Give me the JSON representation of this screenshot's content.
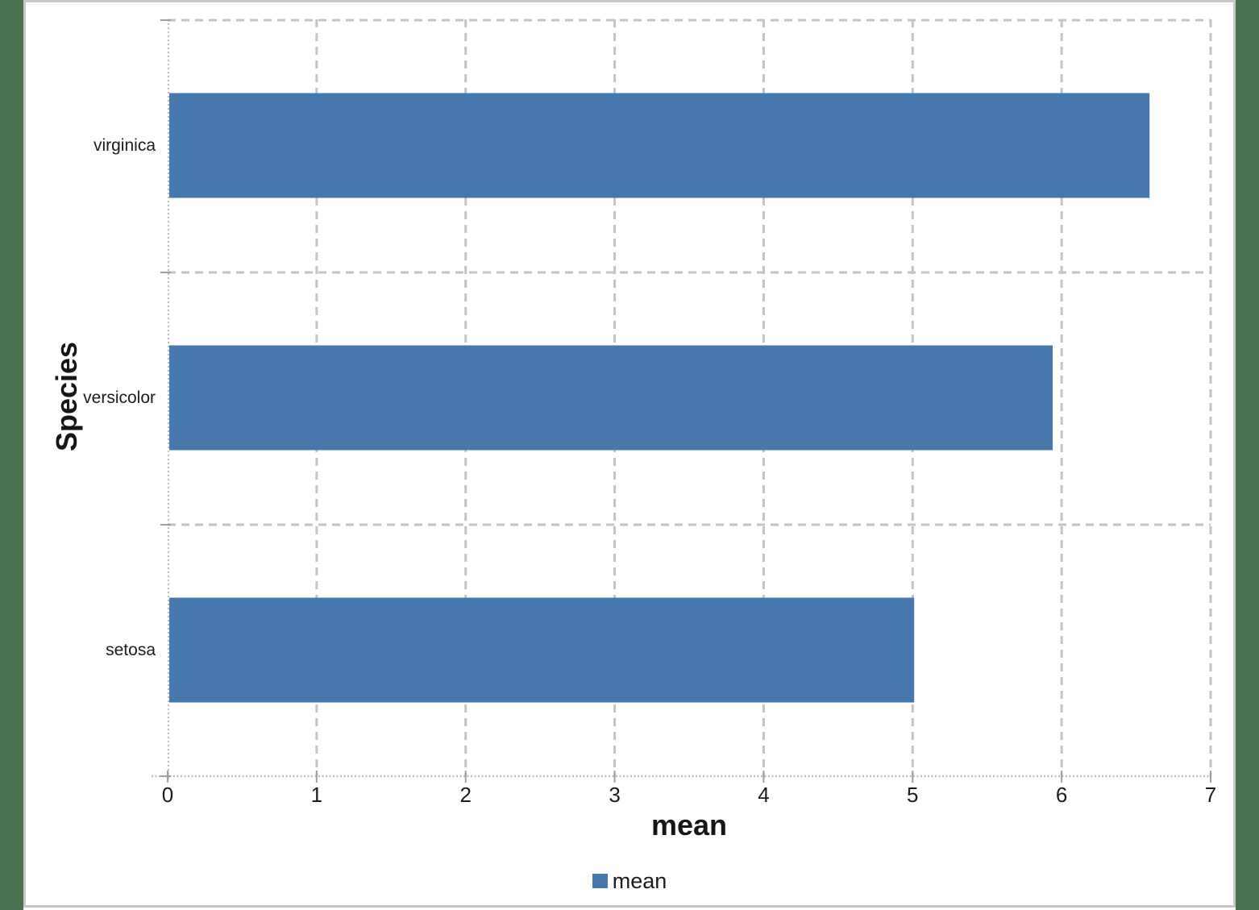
{
  "chart_data": {
    "type": "bar",
    "orientation": "horizontal",
    "title": "",
    "xlabel": "mean",
    "ylabel": "Species",
    "categories_top_to_bottom": [
      "virginica",
      "versicolor",
      "setosa"
    ],
    "series": [
      {
        "name": "mean",
        "values_top_to_bottom": [
          6.59,
          5.94,
          5.01
        ]
      }
    ],
    "xlim": [
      0,
      7
    ],
    "x_ticks": [
      "0",
      "1",
      "2",
      "3",
      "4",
      "5",
      "6",
      "7"
    ],
    "grid": "dashed major gridlines, both axes",
    "legend": {
      "position": "bottom-center",
      "entries": [
        {
          "label": "mean",
          "color": "#4678AD"
        }
      ]
    }
  },
  "colors": {
    "bar": "#4678AD",
    "gridline": "#C4C4C4",
    "axis_line": "#BDBDBD",
    "tick_mark": "#9E9E9E",
    "text": "#1c1c1c",
    "page_margin_green": "#4A7150",
    "sheet_border_gray": "#C5C8C4",
    "background": "#ffffff"
  }
}
